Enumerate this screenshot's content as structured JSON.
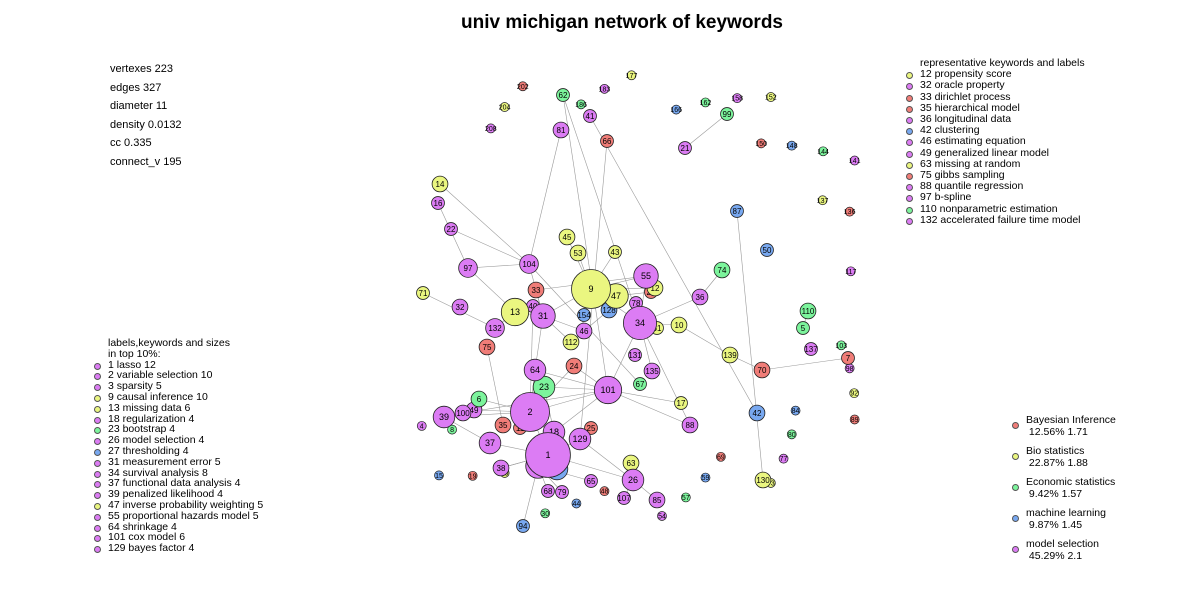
{
  "title": "univ michigan network of keywords",
  "stats": [
    "vertexes 223",
    "edges 327",
    "diameter 11",
    "density 0.0132",
    "cc 0.335",
    "connect_v 195"
  ],
  "colors": {
    "bayes": "#f07d78",
    "bio": "#eaf680",
    "econ": "#7cf49c",
    "ml": "#78a8f0",
    "model": "#dc7cf4"
  },
  "representative": {
    "header": "representative keywords and labels",
    "items": [
      {
        "text": "12 propensity score",
        "color": "bio"
      },
      {
        "text": "32 oracle property",
        "color": "model"
      },
      {
        "text": "33 dirichlet process",
        "color": "bayes"
      },
      {
        "text": "35 hierarchical model",
        "color": "bayes"
      },
      {
        "text": "36 longitudinal data",
        "color": "model"
      },
      {
        "text": "42 clustering",
        "color": "ml"
      },
      {
        "text": "46 estimating equation",
        "color": "model"
      },
      {
        "text": "49 generalized linear model",
        "color": "model"
      },
      {
        "text": "63 missing at random",
        "color": "bio"
      },
      {
        "text": "75 gibbs sampling",
        "color": "bayes"
      },
      {
        "text": "88 quantile regression",
        "color": "model"
      },
      {
        "text": "97 b-spline",
        "color": "model"
      },
      {
        "text": "110 nonparametric estimation",
        "color": "econ"
      },
      {
        "text": "132 accelerated failure time model",
        "color": "model"
      }
    ]
  },
  "top_list": {
    "header": [
      "labels,keywords and sizes",
      "in top 10%:"
    ],
    "items": [
      {
        "text": "1 lasso 12",
        "color": "model"
      },
      {
        "text": "2 variable selection 10",
        "color": "model"
      },
      {
        "text": "3 sparsity 5",
        "color": "model"
      },
      {
        "text": "9 causal inference 10",
        "color": "bio"
      },
      {
        "text": "13 missing data 6",
        "color": "bio"
      },
      {
        "text": "18 regularization 4",
        "color": "model"
      },
      {
        "text": "23 bootstrap 4",
        "color": "econ"
      },
      {
        "text": "26 model selection 4",
        "color": "model"
      },
      {
        "text": "27 thresholding 4",
        "color": "ml"
      },
      {
        "text": "31 measurement error 5",
        "color": "model"
      },
      {
        "text": "34 survival analysis 8",
        "color": "model"
      },
      {
        "text": "37 functional data analysis 4",
        "color": "model"
      },
      {
        "text": "39 penalized likelihood 4",
        "color": "model"
      },
      {
        "text": "47 inverse probability weighting 5",
        "color": "bio"
      },
      {
        "text": "55 proportional hazards model 5",
        "color": "model"
      },
      {
        "text": "64 shrinkage 4",
        "color": "model"
      },
      {
        "text": "101 cox model 6",
        "color": "model"
      },
      {
        "text": "129 bayes factor 4",
        "color": "model"
      }
    ]
  },
  "categories": [
    {
      "name": "Bayesian Inference",
      "value": "12.56% 1.71",
      "color": "bayes"
    },
    {
      "name": "Bio statistics",
      "value": "22.87% 1.88",
      "color": "bio"
    },
    {
      "name": "Economic statistics",
      "value": "9.42% 1.57",
      "color": "econ"
    },
    {
      "name": "machine learning",
      "value": "9.87% 1.45",
      "color": "ml"
    },
    {
      "name": "model selection",
      "value": "45.29% 2.1",
      "color": "model"
    }
  ],
  "nodes": [
    {
      "id": "1",
      "c": "model",
      "s": 12
    },
    {
      "id": "2",
      "c": "model",
      "s": 10
    },
    {
      "id": "3",
      "c": "model",
      "s": 5
    },
    {
      "id": "9",
      "c": "bio",
      "s": 10
    },
    {
      "id": "13",
      "c": "bio",
      "s": 6
    },
    {
      "id": "18",
      "c": "model",
      "s": 4
    },
    {
      "id": "23",
      "c": "econ",
      "s": 4
    },
    {
      "id": "26",
      "c": "model",
      "s": 4
    },
    {
      "id": "27",
      "c": "ml",
      "s": 4
    },
    {
      "id": "31",
      "c": "model",
      "s": 5
    },
    {
      "id": "34",
      "c": "model",
      "s": 8
    },
    {
      "id": "37",
      "c": "model",
      "s": 4
    },
    {
      "id": "39",
      "c": "model",
      "s": 4
    },
    {
      "id": "47",
      "c": "bio",
      "s": 5
    },
    {
      "id": "55",
      "c": "model",
      "s": 5
    },
    {
      "id": "64",
      "c": "model",
      "s": 4
    },
    {
      "id": "101",
      "c": "model",
      "s": 6
    },
    {
      "id": "129",
      "c": "model",
      "s": 4
    },
    {
      "id": "12",
      "c": "bio",
      "s": 2
    },
    {
      "id": "32",
      "c": "model",
      "s": 2
    },
    {
      "id": "33",
      "c": "bayes",
      "s": 2
    },
    {
      "id": "35",
      "c": "bayes",
      "s": 2
    },
    {
      "id": "36",
      "c": "model",
      "s": 2
    },
    {
      "id": "42",
      "c": "ml",
      "s": 2
    },
    {
      "id": "46",
      "c": "model",
      "s": 2
    },
    {
      "id": "49",
      "c": "model",
      "s": 2
    },
    {
      "id": "63",
      "c": "bio",
      "s": 2
    },
    {
      "id": "75",
      "c": "bayes",
      "s": 2
    },
    {
      "id": "88",
      "c": "model",
      "s": 2
    },
    {
      "id": "97",
      "c": "model",
      "s": 3
    },
    {
      "id": "110",
      "c": "econ",
      "s": 2
    },
    {
      "id": "132",
      "c": "model",
      "s": 3
    },
    {
      "id": "14",
      "c": "bio",
      "s": 2
    },
    {
      "id": "104",
      "c": "model",
      "s": 3
    },
    {
      "id": "45",
      "c": "bio",
      "s": 2
    },
    {
      "id": "53",
      "c": "bio",
      "s": 2
    },
    {
      "id": "81",
      "c": "model",
      "s": 2
    },
    {
      "id": "62",
      "c": "econ",
      "s": 1
    },
    {
      "id": "99",
      "c": "econ",
      "s": 1
    },
    {
      "id": "21",
      "c": "model",
      "s": 1
    },
    {
      "id": "74",
      "c": "econ",
      "s": 2
    },
    {
      "id": "50",
      "c": "ml",
      "s": 1
    },
    {
      "id": "71",
      "c": "bio",
      "s": 1
    },
    {
      "id": "6",
      "c": "econ",
      "s": 2
    },
    {
      "id": "24",
      "c": "bayes",
      "s": 2
    },
    {
      "id": "70",
      "c": "bayes",
      "s": 2
    },
    {
      "id": "7",
      "c": "bayes",
      "s": 1
    },
    {
      "id": "5",
      "c": "econ",
      "s": 1
    },
    {
      "id": "139",
      "c": "bio",
      "s": 2
    },
    {
      "id": "10",
      "c": "bio",
      "s": 2
    },
    {
      "id": "130",
      "c": "bio",
      "s": 2
    },
    {
      "id": "38",
      "c": "model",
      "s": 2
    },
    {
      "id": "17",
      "c": "bio",
      "s": 1
    },
    {
      "id": "112",
      "c": "bio",
      "s": 2
    },
    {
      "id": "128",
      "c": "ml",
      "s": 2
    },
    {
      "id": "135",
      "c": "model",
      "s": 2
    },
    {
      "id": "85",
      "c": "model",
      "s": 2
    },
    {
      "id": "22",
      "c": "model",
      "s": 1
    },
    {
      "id": "16",
      "c": "model",
      "s": 1
    },
    {
      "id": "94",
      "c": "ml",
      "s": 1
    },
    {
      "id": "107",
      "c": "model",
      "s": 1
    },
    {
      "id": "100",
      "c": "model",
      "s": 2
    },
    {
      "id": "66",
      "c": "bayes",
      "s": 1
    },
    {
      "id": "65",
      "c": "model",
      "s": 1
    },
    {
      "id": "82",
      "c": "model",
      "s": 1
    },
    {
      "id": "78",
      "c": "model",
      "s": 1
    },
    {
      "id": "87",
      "c": "ml",
      "s": 1
    },
    {
      "id": "25",
      "c": "bayes",
      "s": 1
    },
    {
      "id": "40",
      "c": "model",
      "s": 1
    },
    {
      "id": "11",
      "c": "bayes",
      "s": 1
    },
    {
      "id": "68",
      "c": "model",
      "s": 1
    },
    {
      "id": "79",
      "c": "model",
      "s": 1
    },
    {
      "id": "67",
      "c": "econ",
      "s": 1
    },
    {
      "id": "29",
      "c": "bayes",
      "s": 1
    },
    {
      "id": "41",
      "c": "model",
      "s": 1
    },
    {
      "id": "43",
      "c": "bio",
      "s": 1
    },
    {
      "id": "61",
      "c": "bio",
      "s": 1
    },
    {
      "id": "154",
      "c": "ml",
      "s": 1
    },
    {
      "id": "131",
      "c": "model",
      "s": 1
    },
    {
      "id": "137",
      "c": "model",
      "s": 1
    }
  ],
  "edges": [
    [
      "1",
      "2"
    ],
    [
      "1",
      "3"
    ],
    [
      "1",
      "18"
    ],
    [
      "1",
      "27"
    ],
    [
      "1",
      "129"
    ],
    [
      "1",
      "64"
    ],
    [
      "1",
      "37"
    ],
    [
      "1",
      "38"
    ],
    [
      "1",
      "26"
    ],
    [
      "2",
      "39"
    ],
    [
      "2",
      "64"
    ],
    [
      "2",
      "23"
    ],
    [
      "2",
      "101"
    ],
    [
      "2",
      "6"
    ],
    [
      "2",
      "11"
    ],
    [
      "2",
      "40"
    ],
    [
      "2",
      "24"
    ],
    [
      "3",
      "94"
    ],
    [
      "3",
      "68"
    ],
    [
      "3",
      "79"
    ],
    [
      "3",
      "65"
    ],
    [
      "18",
      "101"
    ],
    [
      "18",
      "23"
    ],
    [
      "31",
      "13"
    ],
    [
      "31",
      "104"
    ],
    [
      "31",
      "33"
    ],
    [
      "31",
      "64"
    ],
    [
      "13",
      "132"
    ],
    [
      "13",
      "155"
    ],
    [
      "13",
      "97"
    ],
    [
      "9",
      "47"
    ],
    [
      "9",
      "53"
    ],
    [
      "9",
      "45"
    ],
    [
      "9",
      "34"
    ],
    [
      "9",
      "31"
    ],
    [
      "9",
      "55"
    ],
    [
      "34",
      "55"
    ],
    [
      "34",
      "36"
    ],
    [
      "34",
      "10"
    ],
    [
      "34",
      "101"
    ],
    [
      "34",
      "135"
    ],
    [
      "34",
      "61"
    ],
    [
      "34",
      "78"
    ],
    [
      "101",
      "23"
    ],
    [
      "101",
      "82"
    ],
    [
      "101",
      "100"
    ],
    [
      "101",
      "17"
    ],
    [
      "101",
      "62"
    ],
    [
      "101",
      "64"
    ],
    [
      "55",
      "33"
    ],
    [
      "47",
      "128"
    ],
    [
      "47",
      "29"
    ],
    [
      "129",
      "26"
    ],
    [
      "129",
      "66"
    ],
    [
      "26",
      "107"
    ],
    [
      "26",
      "85"
    ],
    [
      "104",
      "97"
    ],
    [
      "104",
      "14"
    ],
    [
      "104",
      "81"
    ],
    [
      "36",
      "74"
    ],
    [
      "10",
      "139"
    ],
    [
      "139",
      "70"
    ],
    [
      "70",
      "7"
    ],
    [
      "112",
      "31"
    ],
    [
      "128",
      "112"
    ],
    [
      "46",
      "31"
    ],
    [
      "24",
      "101"
    ],
    [
      "62",
      "34"
    ],
    [
      "12",
      "9"
    ],
    [
      "42",
      "41"
    ],
    [
      "132",
      "71"
    ],
    [
      "5",
      "110"
    ],
    [
      "37",
      "39"
    ],
    [
      "38",
      "1"
    ],
    [
      "22",
      "104"
    ],
    [
      "16",
      "97"
    ],
    [
      "43",
      "9"
    ],
    [
      "67",
      "104"
    ],
    [
      "87",
      "130"
    ],
    [
      "21",
      "99"
    ],
    [
      "75",
      "35"
    ],
    [
      "88",
      "34"
    ],
    [
      "49",
      "2"
    ]
  ],
  "extra_labels": [
    "208",
    "204",
    "202",
    "195",
    "186",
    "183",
    "177",
    "171",
    "166",
    "162",
    "158",
    "152",
    "150",
    "148",
    "144",
    "141",
    "137",
    "136",
    "126",
    "120",
    "117",
    "115",
    "109",
    "106",
    "103",
    "98",
    "92",
    "89",
    "84",
    "80",
    "77",
    "73",
    "69",
    "59",
    "57",
    "54",
    "52",
    "48",
    "44",
    "30",
    "28",
    "20",
    "19",
    "15",
    "8",
    "4"
  ]
}
